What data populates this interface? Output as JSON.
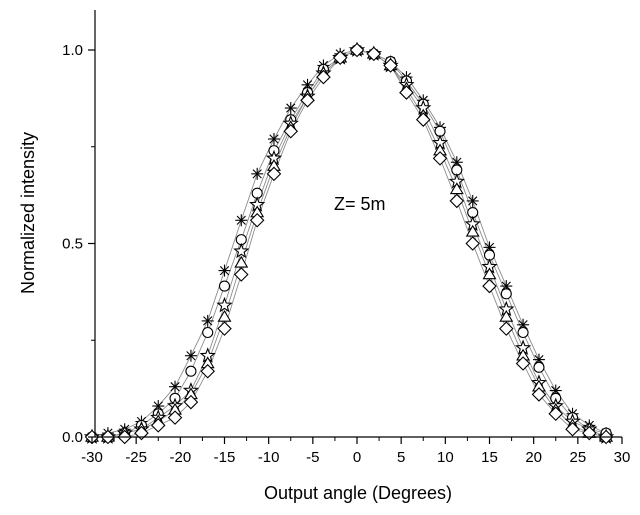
{
  "chart_data": {
    "type": "line",
    "title": "",
    "xlabel": "Output angle (Degrees)",
    "ylabel": "Normalized intensity",
    "xlim": [
      -30,
      30
    ],
    "ylim": [
      0,
      1.0
    ],
    "x_ticks": [
      -30,
      -25,
      -20,
      -15,
      -10,
      -5,
      0,
      5,
      10,
      15,
      20,
      25,
      30
    ],
    "y_ticks": [
      0.0,
      0.5,
      1.0
    ],
    "y_tick_labels": [
      "0.0",
      "0.5",
      "1.0"
    ],
    "grid": false,
    "legend": "none",
    "annotation": "Z= 5m",
    "line_color": "#8c8c8c",
    "marker_color": "#000000",
    "series": [
      {
        "marker": "asterisk",
        "x": [
          -30,
          -28.2,
          -26.3,
          -24.4,
          -22.5,
          -20.6,
          -18.8,
          -16.9,
          -15,
          -13.1,
          -11.3,
          -9.4,
          -7.5,
          -5.6,
          -3.8,
          -1.9,
          0,
          1.9,
          3.8,
          5.6,
          7.5,
          9.4,
          11.3,
          13.1,
          15,
          16.9,
          18.8,
          20.6,
          22.5,
          24.4,
          26.3,
          28.2
        ],
        "values": [
          0.0,
          0.01,
          0.02,
          0.04,
          0.08,
          0.13,
          0.21,
          0.3,
          0.43,
          0.56,
          0.68,
          0.77,
          0.85,
          0.91,
          0.96,
          0.99,
          1.0,
          0.99,
          0.97,
          0.93,
          0.87,
          0.8,
          0.71,
          0.61,
          0.49,
          0.39,
          0.29,
          0.2,
          0.12,
          0.06,
          0.03,
          0.01
        ]
      },
      {
        "marker": "circle",
        "x": [
          -30,
          -28.2,
          -26.3,
          -24.4,
          -22.5,
          -20.6,
          -18.8,
          -16.9,
          -15,
          -13.1,
          -11.3,
          -9.4,
          -7.5,
          -5.6,
          -3.8,
          -1.9,
          0,
          1.9,
          3.8,
          5.6,
          7.5,
          9.4,
          11.3,
          13.1,
          15,
          16.9,
          18.8,
          20.6,
          22.5,
          24.4,
          26.3,
          28.2
        ],
        "values": [
          0.0,
          0.0,
          0.01,
          0.03,
          0.06,
          0.1,
          0.17,
          0.27,
          0.39,
          0.51,
          0.63,
          0.74,
          0.82,
          0.89,
          0.95,
          0.98,
          1.0,
          0.99,
          0.97,
          0.92,
          0.86,
          0.79,
          0.69,
          0.58,
          0.47,
          0.37,
          0.27,
          0.18,
          0.1,
          0.05,
          0.02,
          0.01
        ]
      },
      {
        "marker": "star",
        "x": [
          -30,
          -28.2,
          -26.3,
          -24.4,
          -22.5,
          -20.6,
          -18.8,
          -16.9,
          -15,
          -13.1,
          -11.3,
          -9.4,
          -7.5,
          -5.6,
          -3.8,
          -1.9,
          0,
          1.9,
          3.8,
          5.6,
          7.5,
          9.4,
          11.3,
          13.1,
          15,
          16.9,
          18.8,
          20.6,
          22.5,
          24.4,
          26.3,
          28.2
        ],
        "values": [
          0.0,
          0.0,
          0.01,
          0.02,
          0.05,
          0.08,
          0.12,
          0.21,
          0.34,
          0.48,
          0.6,
          0.72,
          0.81,
          0.88,
          0.94,
          0.98,
          1.0,
          0.99,
          0.96,
          0.91,
          0.85,
          0.76,
          0.66,
          0.55,
          0.44,
          0.33,
          0.23,
          0.14,
          0.08,
          0.04,
          0.02,
          0.0
        ]
      },
      {
        "marker": "triangle",
        "x": [
          -30,
          -28.2,
          -26.3,
          -24.4,
          -22.5,
          -20.6,
          -18.8,
          -16.9,
          -15,
          -13.1,
          -11.3,
          -9.4,
          -7.5,
          -5.6,
          -3.8,
          -1.9,
          0,
          1.9,
          3.8,
          5.6,
          7.5,
          9.4,
          11.3,
          13.1,
          15,
          16.9,
          18.8,
          20.6,
          22.5,
          24.4,
          26.3,
          28.2
        ],
        "values": [
          0.0,
          0.0,
          0.01,
          0.02,
          0.04,
          0.07,
          0.11,
          0.19,
          0.31,
          0.45,
          0.58,
          0.7,
          0.8,
          0.88,
          0.94,
          0.98,
          1.0,
          0.99,
          0.96,
          0.9,
          0.83,
          0.74,
          0.64,
          0.53,
          0.42,
          0.31,
          0.21,
          0.13,
          0.07,
          0.03,
          0.01,
          0.0
        ]
      },
      {
        "marker": "diamond",
        "x": [
          -30,
          -28.2,
          -26.3,
          -24.4,
          -22.5,
          -20.6,
          -18.8,
          -16.9,
          -15,
          -13.1,
          -11.3,
          -9.4,
          -7.5,
          -5.6,
          -3.8,
          -1.9,
          0,
          1.9,
          3.8,
          5.6,
          7.5,
          9.4,
          11.3,
          13.1,
          15,
          16.9,
          18.8,
          20.6,
          22.5,
          24.4,
          26.3,
          28.2
        ],
        "values": [
          0.0,
          0.0,
          0.0,
          0.01,
          0.03,
          0.05,
          0.09,
          0.17,
          0.28,
          0.42,
          0.56,
          0.68,
          0.79,
          0.87,
          0.93,
          0.98,
          1.0,
          0.99,
          0.96,
          0.89,
          0.82,
          0.72,
          0.61,
          0.5,
          0.39,
          0.28,
          0.19,
          0.11,
          0.06,
          0.02,
          0.01,
          0.0
        ]
      }
    ]
  }
}
